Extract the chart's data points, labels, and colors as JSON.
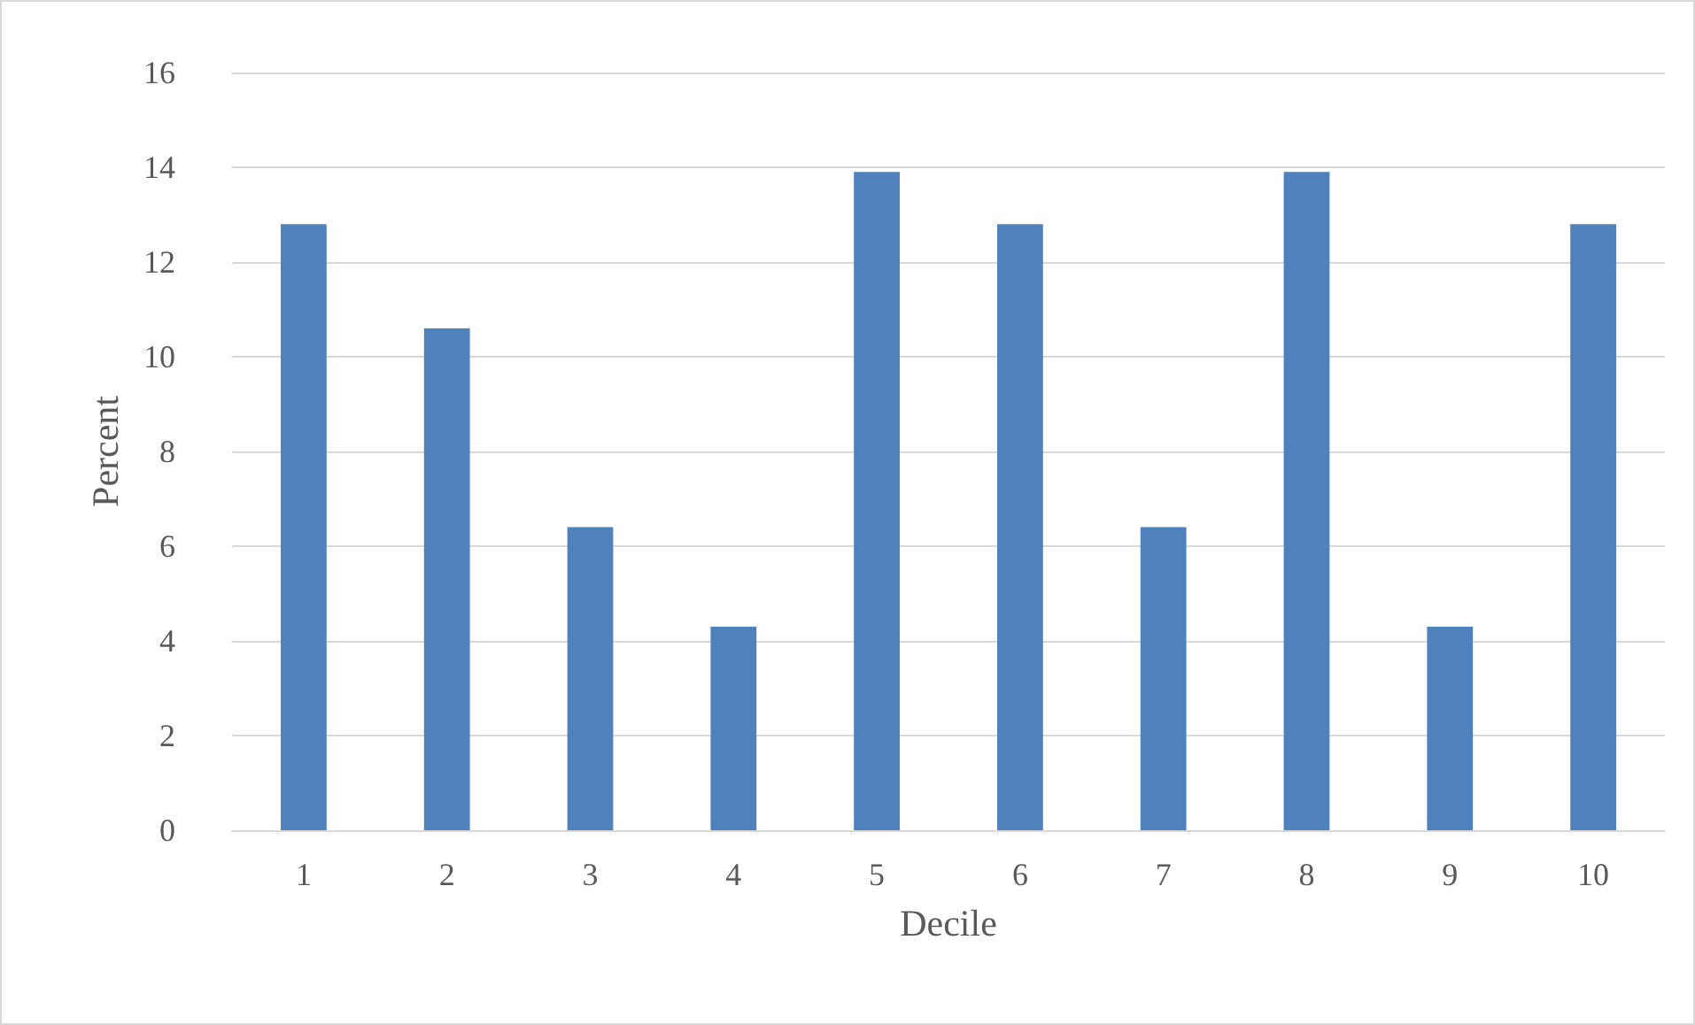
{
  "chart_data": {
    "type": "bar",
    "xlabel": "Decile",
    "ylabel": "Percent",
    "categories": [
      "1",
      "2",
      "3",
      "4",
      "5",
      "6",
      "7",
      "8",
      "9",
      "10"
    ],
    "series": [
      {
        "color": "#4f81bd",
        "values": [
          12.8,
          10.6,
          6.4,
          4.3,
          13.9,
          12.8,
          6.4,
          13.9,
          4.3,
          12.8
        ]
      }
    ],
    "ylim": [
      0,
      16
    ],
    "yticks": [
      0,
      2,
      4,
      6,
      8,
      10,
      12,
      14,
      16
    ],
    "grid": "y"
  }
}
